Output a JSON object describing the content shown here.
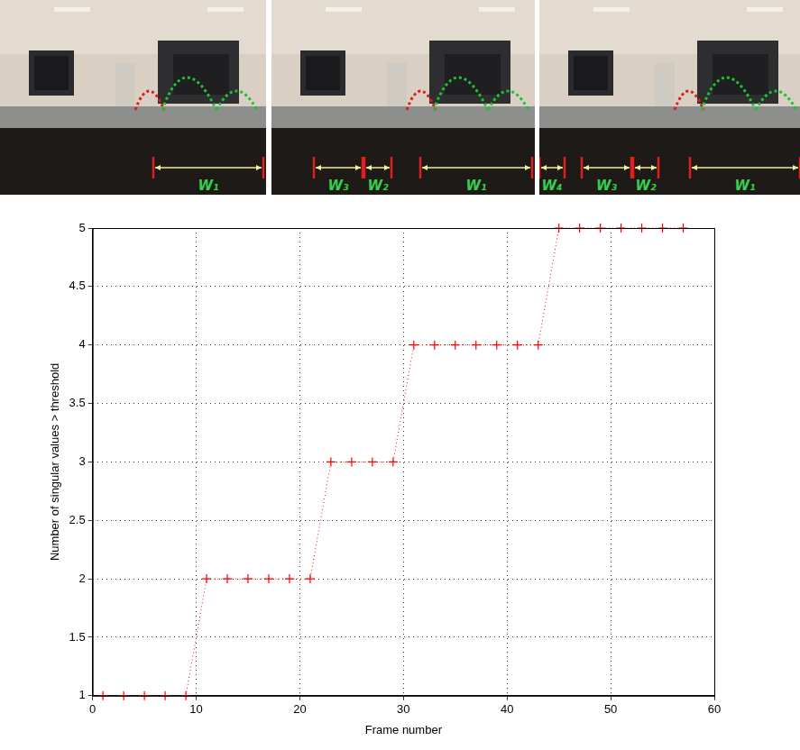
{
  "chart_data": {
    "type": "line",
    "x": [
      1,
      3,
      5,
      7,
      9,
      11,
      13,
      15,
      17,
      19,
      21,
      23,
      25,
      27,
      29,
      31,
      33,
      35,
      37,
      39,
      41,
      43,
      45,
      47,
      49,
      51,
      53,
      55,
      57
    ],
    "values": [
      1,
      1,
      1,
      1,
      1,
      2,
      2,
      2,
      2,
      2,
      2,
      3,
      3,
      3,
      3,
      4,
      4,
      4,
      4,
      4,
      4,
      4,
      5,
      5,
      5,
      5,
      5,
      5,
      5
    ],
    "color": "#ff0000",
    "marker": "plus",
    "line_style": "dotted",
    "x_label": "Frame number",
    "y_label": "Number of singular values > threshold",
    "xlim": [
      0,
      60
    ],
    "xticks": [
      0,
      10,
      20,
      30,
      40,
      50,
      60
    ],
    "ylim": [
      1,
      5
    ],
    "yticks": [
      1,
      1.5,
      2,
      2.5,
      3,
      3.5,
      4,
      4.5,
      5
    ],
    "grid": true
  },
  "image_strip": {
    "panels": [
      {
        "labels": [
          "W₁"
        ]
      },
      {
        "labels": [
          "W₃",
          "W₂",
          "W₁"
        ]
      },
      {
        "labels": [
          "W₄",
          "W₃",
          "W₂",
          "W₁"
        ]
      }
    ]
  }
}
